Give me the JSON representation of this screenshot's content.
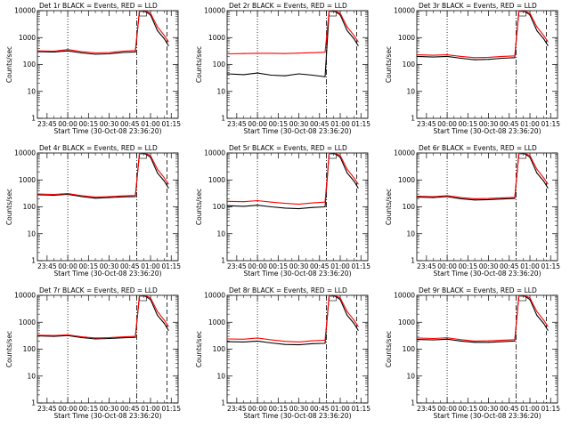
{
  "figure": {
    "time_tick_labels": [
      "23:45",
      "00:00",
      "00:15",
      "00:30",
      "00:45",
      "01:00",
      "01:15"
    ],
    "time_tick_minutes": [
      -15,
      0,
      15,
      30,
      45,
      60,
      75
    ],
    "y_tick_labels": [
      "1",
      "10",
      "100",
      "1000",
      "10000"
    ],
    "y_tick_values": [
      1,
      10,
      100,
      1000,
      10000
    ]
  },
  "chart_data": [
    {
      "type": "line",
      "title": "Det 1r BLACK = Events, RED = LLD",
      "xlabel": "Start Time (30-Oct-08 23:36:20)",
      "ylabel": "Counts/sec",
      "ylim": [
        1,
        10000
      ],
      "yscale": "log",
      "xlim_minutes": [
        -22,
        80
      ],
      "x": [
        -22,
        -10,
        0,
        10,
        20,
        30,
        40,
        49,
        52,
        56,
        60,
        65,
        70,
        73
      ],
      "series": [
        {
          "name": "Events",
          "color": "#000000",
          "values": [
            300,
            290,
            320,
            270,
            240,
            250,
            280,
            290,
            10000,
            9500,
            7000,
            1800,
            900,
            500
          ]
        },
        {
          "name": "LLD",
          "color": "#ff0000",
          "values": [
            320,
            310,
            360,
            300,
            270,
            280,
            310,
            330,
            10000,
            10000,
            8000,
            2500,
            1200,
            700
          ]
        }
      ],
      "annotations": {
        "dotted_vline_min": 0,
        "dashdot_vline_min": 50,
        "dashed_vline_min": 72
      }
    },
    {
      "type": "line",
      "title": "Det 2r BLACK = Events, RED = LLD",
      "xlabel": "Start Time (30-Oct-08 23:36:20)",
      "ylabel": "Counts/sec",
      "ylim": [
        1,
        10000
      ],
      "yscale": "log",
      "xlim_minutes": [
        -22,
        80
      ],
      "x": [
        -22,
        -10,
        0,
        10,
        20,
        30,
        40,
        49,
        52,
        56,
        60,
        65,
        70,
        73
      ],
      "series": [
        {
          "name": "Events",
          "color": "#000000",
          "values": [
            45,
            42,
            48,
            40,
            38,
            45,
            40,
            35,
            10000,
            9500,
            7000,
            1800,
            900,
            500
          ]
        },
        {
          "name": "LLD",
          "color": "#ff0000",
          "values": [
            250,
            255,
            260,
            260,
            255,
            265,
            275,
            285,
            10000,
            10000,
            8000,
            2500,
            1200,
            700
          ]
        }
      ],
      "annotations": {
        "dotted_vline_min": 0,
        "dashdot_vline_min": 50,
        "dashed_vline_min": 72
      }
    },
    {
      "type": "line",
      "title": "Det 3r BLACK = Events, RED = LLD",
      "xlabel": "Start Time (30-Oct-08 23:36:20)",
      "ylabel": "Counts/sec",
      "ylim": [
        1,
        10000
      ],
      "yscale": "log",
      "xlim_minutes": [
        -22,
        80
      ],
      "x": [
        -22,
        -10,
        0,
        10,
        20,
        30,
        40,
        49,
        52,
        56,
        60,
        65,
        70,
        73
      ],
      "series": [
        {
          "name": "Events",
          "color": "#000000",
          "values": [
            200,
            190,
            200,
            170,
            150,
            155,
            170,
            180,
            10000,
            9500,
            7000,
            1800,
            900,
            500
          ]
        },
        {
          "name": "LLD",
          "color": "#ff0000",
          "values": [
            230,
            220,
            230,
            200,
            180,
            185,
            200,
            210,
            10000,
            10000,
            8000,
            2500,
            1200,
            700
          ]
        }
      ],
      "annotations": {
        "dotted_vline_min": 0,
        "dashdot_vline_min": 50,
        "dashed_vline_min": 72
      }
    },
    {
      "type": "line",
      "title": "Det 4r BLACK = Events, RED = LLD",
      "xlabel": "Start Time (30-Oct-08 23:36:20)",
      "ylabel": "Counts/sec",
      "ylim": [
        1,
        10000
      ],
      "yscale": "log",
      "xlim_minutes": [
        -22,
        80
      ],
      "x": [
        -22,
        -10,
        0,
        10,
        20,
        30,
        40,
        49,
        52,
        56,
        60,
        65,
        70,
        73
      ],
      "series": [
        {
          "name": "Events",
          "color": "#000000",
          "values": [
            280,
            270,
            290,
            240,
            210,
            220,
            235,
            240,
            10000,
            9500,
            7000,
            1800,
            900,
            500
          ]
        },
        {
          "name": "LLD",
          "color": "#ff0000",
          "values": [
            300,
            290,
            310,
            260,
            230,
            240,
            255,
            265,
            10000,
            10000,
            8000,
            2500,
            1200,
            700
          ]
        }
      ],
      "annotations": {
        "dotted_vline_min": 0,
        "dashdot_vline_min": 50,
        "dashed_vline_min": 72
      }
    },
    {
      "type": "line",
      "title": "Det 5r BLACK = Events, RED = LLD",
      "xlabel": "Start Time (30-Oct-08 23:36:20)",
      "ylabel": "Counts/sec",
      "ylim": [
        1,
        10000
      ],
      "yscale": "log",
      "xlim_minutes": [
        -22,
        80
      ],
      "x": [
        -22,
        -10,
        0,
        10,
        20,
        30,
        40,
        49,
        52,
        56,
        60,
        65,
        70,
        73
      ],
      "series": [
        {
          "name": "Events",
          "color": "#000000",
          "values": [
            110,
            105,
            115,
            100,
            90,
            85,
            95,
            100,
            10000,
            9500,
            7000,
            1800,
            900,
            500
          ]
        },
        {
          "name": "LLD",
          "color": "#ff0000",
          "values": [
            160,
            155,
            170,
            150,
            135,
            125,
            140,
            150,
            10000,
            10000,
            8000,
            2500,
            1200,
            700
          ]
        }
      ],
      "annotations": {
        "dotted_vline_min": 0,
        "dashdot_vline_min": 50,
        "dashed_vline_min": 72
      }
    },
    {
      "type": "line",
      "title": "Det 6r BLACK = Events, RED = LLD",
      "xlabel": "Start Time (30-Oct-08 23:36:20)",
      "ylabel": "Counts/sec",
      "ylim": [
        1,
        10000
      ],
      "yscale": "log",
      "xlim_minutes": [
        -22,
        80
      ],
      "x": [
        -22,
        -10,
        0,
        10,
        20,
        30,
        40,
        49,
        52,
        56,
        60,
        65,
        70,
        73
      ],
      "series": [
        {
          "name": "Events",
          "color": "#000000",
          "values": [
            230,
            220,
            240,
            200,
            180,
            185,
            195,
            205,
            10000,
            9500,
            7000,
            1800,
            900,
            500
          ]
        },
        {
          "name": "LLD",
          "color": "#ff0000",
          "values": [
            250,
            240,
            260,
            220,
            200,
            205,
            215,
            225,
            10000,
            10000,
            8000,
            2500,
            1200,
            700
          ]
        }
      ],
      "annotations": {
        "dotted_vline_min": 0,
        "dashdot_vline_min": 50,
        "dashed_vline_min": 72
      }
    },
    {
      "type": "line",
      "title": "Det 7r BLACK = Events, RED = LLD",
      "xlabel": "Start Time (30-Oct-08 23:36:20)",
      "ylabel": "Counts/sec",
      "ylim": [
        1,
        10000
      ],
      "yscale": "log",
      "xlim_minutes": [
        -22,
        80
      ],
      "x": [
        -22,
        -10,
        0,
        10,
        20,
        30,
        40,
        49,
        52,
        56,
        60,
        65,
        70,
        73
      ],
      "series": [
        {
          "name": "Events",
          "color": "#000000",
          "values": [
            310,
            300,
            320,
            270,
            240,
            250,
            265,
            275,
            10000,
            9500,
            7000,
            1800,
            900,
            500
          ]
        },
        {
          "name": "LLD",
          "color": "#ff0000",
          "values": [
            330,
            320,
            340,
            290,
            260,
            270,
            285,
            300,
            10000,
            10000,
            8000,
            2500,
            1200,
            700
          ]
        }
      ],
      "annotations": {
        "dotted_vline_min": 0,
        "dashdot_vline_min": 50,
        "dashed_vline_min": 72
      }
    },
    {
      "type": "line",
      "title": "Det 8r BLACK = Events, RED = LLD",
      "xlabel": "Start Time (30-Oct-08 23:36:20)",
      "ylabel": "Counts/sec",
      "ylim": [
        1,
        10000
      ],
      "yscale": "log",
      "xlim_minutes": [
        -22,
        80
      ],
      "x": [
        -22,
        -10,
        0,
        10,
        20,
        30,
        40,
        49,
        52,
        56,
        60,
        65,
        70,
        73
      ],
      "series": [
        {
          "name": "Events",
          "color": "#000000",
          "values": [
            190,
            185,
            200,
            170,
            150,
            145,
            160,
            165,
            10000,
            9500,
            7000,
            1800,
            900,
            500
          ]
        },
        {
          "name": "LLD",
          "color": "#ff0000",
          "values": [
            240,
            235,
            260,
            220,
            195,
            185,
            205,
            215,
            10000,
            10000,
            8000,
            2500,
            1200,
            700
          ]
        }
      ],
      "annotations": {
        "dotted_vline_min": 0,
        "dashdot_vline_min": 50,
        "dashed_vline_min": 72
      }
    },
    {
      "type": "line",
      "title": "Det 9r BLACK = Events, RED = LLD",
      "xlabel": "Start Time (30-Oct-08 23:36:20)",
      "ylabel": "Counts/sec",
      "ylim": [
        1,
        10000
      ],
      "yscale": "log",
      "xlim_minutes": [
        -22,
        80
      ],
      "x": [
        -22,
        -10,
        0,
        10,
        20,
        30,
        40,
        49,
        52,
        56,
        60,
        65,
        70,
        73
      ],
      "series": [
        {
          "name": "Events",
          "color": "#000000",
          "values": [
            230,
            220,
            235,
            200,
            180,
            180,
            190,
            200,
            10000,
            9500,
            7000,
            1800,
            900,
            500
          ]
        },
        {
          "name": "LLD",
          "color": "#ff0000",
          "values": [
            260,
            250,
            265,
            225,
            200,
            205,
            215,
            225,
            10000,
            10000,
            8000,
            2500,
            1200,
            700
          ]
        }
      ],
      "annotations": {
        "dotted_vline_min": 0,
        "dashdot_vline_min": 50,
        "dashed_vline_min": 72
      }
    }
  ]
}
